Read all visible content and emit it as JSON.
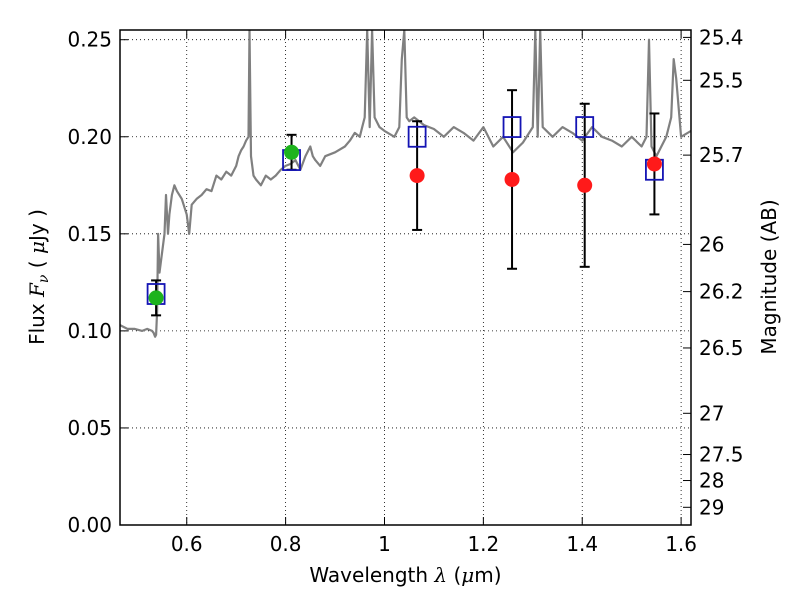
{
  "chart_data": {
    "type": "scatter",
    "title": "",
    "xlabel": "Wavelength λ (μm)",
    "xlabel_parts": {
      "prefix": "Wavelength ",
      "symbol": "λ",
      "open": " (",
      "unit_symbol": "μ",
      "unit": "m)"
    },
    "ylabel": "Flux Fν ( μJy )",
    "ylabel_parts": {
      "prefix": "Flux ",
      "symbol": "F",
      "sub": "ν",
      "open": " ( ",
      "unit_symbol": "μ",
      "unit": "Jy )"
    },
    "y2label": "Magnitude (AB)",
    "xlim": [
      0.465,
      1.62
    ],
    "ylim": [
      0.0,
      0.255
    ],
    "grid": true,
    "x_ticks": [
      {
        "value": 0.6,
        "label": "0.6"
      },
      {
        "value": 0.8,
        "label": "0.8"
      },
      {
        "value": 1.0,
        "label": "1"
      },
      {
        "value": 1.2,
        "label": "1.2"
      },
      {
        "value": 1.4,
        "label": "1.4"
      },
      {
        "value": 1.6,
        "label": "1.6"
      }
    ],
    "y_ticks": [
      {
        "value": 0.0,
        "label": "0.00"
      },
      {
        "value": 0.05,
        "label": "0.05"
      },
      {
        "value": 0.1,
        "label": "0.10"
      },
      {
        "value": 0.15,
        "label": "0.15"
      },
      {
        "value": 0.2,
        "label": "0.20"
      },
      {
        "value": 0.25,
        "label": "0.25"
      }
    ],
    "y2_ticks": [
      {
        "value": 25.4,
        "label": "25.4"
      },
      {
        "value": 25.5,
        "label": "25.5"
      },
      {
        "value": 25.7,
        "label": "25.7"
      },
      {
        "value": 26.0,
        "label": "26"
      },
      {
        "value": 26.2,
        "label": "26.2"
      },
      {
        "value": 26.5,
        "label": "26.5"
      },
      {
        "value": 27.0,
        "label": "27"
      },
      {
        "value": 27.5,
        "label": "27.5"
      },
      {
        "value": 28.0,
        "label": "28"
      },
      {
        "value": 29.0,
        "label": "29"
      }
    ],
    "series": [
      {
        "name": "model spectrum",
        "kind": "line",
        "color": "#808080",
        "x": [
          0.465,
          0.48,
          0.495,
          0.51,
          0.52,
          0.53,
          0.533,
          0.536,
          0.538,
          0.54,
          0.542,
          0.545,
          0.55,
          0.555,
          0.558,
          0.56,
          0.562,
          0.565,
          0.57,
          0.575,
          0.58,
          0.59,
          0.6,
          0.605,
          0.61,
          0.62,
          0.63,
          0.64,
          0.65,
          0.66,
          0.67,
          0.68,
          0.69,
          0.7,
          0.705,
          0.71,
          0.715,
          0.72,
          0.725,
          0.727,
          0.73,
          0.735,
          0.74,
          0.75,
          0.76,
          0.77,
          0.78,
          0.79,
          0.8,
          0.81,
          0.82,
          0.83,
          0.84,
          0.85,
          0.855,
          0.86,
          0.87,
          0.88,
          0.9,
          0.92,
          0.93,
          0.94,
          0.95,
          0.955,
          0.96,
          0.965,
          0.97,
          0.975,
          0.98,
          0.99,
          1.0,
          1.02,
          1.03,
          1.035,
          1.04,
          1.045,
          1.05,
          1.06,
          1.08,
          1.1,
          1.12,
          1.14,
          1.16,
          1.18,
          1.2,
          1.22,
          1.24,
          1.26,
          1.28,
          1.3,
          1.305,
          1.31,
          1.315,
          1.32,
          1.34,
          1.36,
          1.38,
          1.4,
          1.42,
          1.44,
          1.46,
          1.48,
          1.5,
          1.52,
          1.53,
          1.535,
          1.54,
          1.55,
          1.57,
          1.58,
          1.585,
          1.59,
          1.6,
          1.62
        ],
        "y": [
          0.103,
          0.101,
          0.101,
          0.1,
          0.101,
          0.1,
          0.099,
          0.097,
          0.098,
          0.11,
          0.15,
          0.13,
          0.14,
          0.15,
          0.17,
          0.16,
          0.15,
          0.16,
          0.17,
          0.175,
          0.172,
          0.168,
          0.16,
          0.15,
          0.165,
          0.168,
          0.17,
          0.173,
          0.172,
          0.18,
          0.178,
          0.182,
          0.18,
          0.185,
          0.19,
          0.193,
          0.195,
          0.198,
          0.2,
          0.255,
          0.19,
          0.18,
          0.178,
          0.175,
          0.18,
          0.178,
          0.18,
          0.183,
          0.185,
          0.186,
          0.188,
          0.183,
          0.19,
          0.195,
          0.19,
          0.188,
          0.185,
          0.19,
          0.192,
          0.195,
          0.198,
          0.202,
          0.2,
          0.205,
          0.21,
          0.255,
          0.205,
          0.255,
          0.21,
          0.205,
          0.203,
          0.2,
          0.205,
          0.24,
          0.255,
          0.21,
          0.208,
          0.21,
          0.206,
          0.204,
          0.2,
          0.205,
          0.202,
          0.198,
          0.205,
          0.195,
          0.2,
          0.192,
          0.197,
          0.205,
          0.255,
          0.2,
          0.255,
          0.205,
          0.2,
          0.205,
          0.202,
          0.198,
          0.205,
          0.2,
          0.198,
          0.195,
          0.2,
          0.195,
          0.2,
          0.25,
          0.195,
          0.19,
          0.2,
          0.21,
          0.24,
          0.23,
          0.2,
          0.203
        ],
        "spikes_clip_at_top": true
      },
      {
        "name": "observed (green)",
        "kind": "points",
        "color": "#1db31d",
        "x": [
          0.538,
          0.812
        ],
        "y": [
          0.117,
          0.192
        ],
        "yerr": [
          0.009,
          0.009
        ]
      },
      {
        "name": "observed (red)",
        "kind": "points",
        "color": "#ff1a1a",
        "x": [
          1.066,
          1.258,
          1.405,
          1.546
        ],
        "y": [
          0.18,
          0.178,
          0.175,
          0.186
        ],
        "yerr": [
          0.028,
          0.046,
          0.042,
          0.026
        ]
      },
      {
        "name": "model photometry",
        "kind": "squares",
        "color": "#1414b4",
        "x": [
          0.538,
          0.812,
          1.066,
          1.258,
          1.405,
          1.546
        ],
        "y": [
          0.119,
          0.188,
          0.2,
          0.205,
          0.205,
          0.183
        ]
      }
    ]
  }
}
